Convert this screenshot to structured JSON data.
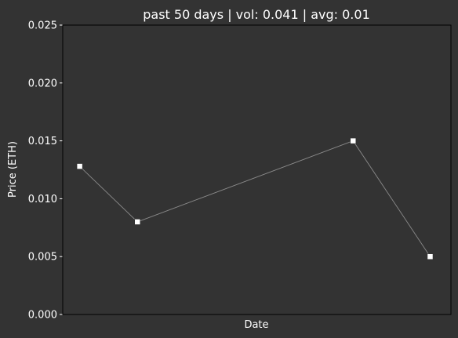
{
  "chart_data": {
    "type": "line",
    "title": "past 50 days | vol: 0.041 | avg: 0.01",
    "xlabel": "Date",
    "ylabel": "Price (ETH)",
    "ylim": [
      0,
      0.025
    ],
    "yticks": [
      "0.000",
      "0.005",
      "0.010",
      "0.015",
      "0.020",
      "0.025"
    ],
    "x": [
      1,
      8.5,
      36.5,
      46.5
    ],
    "xlim": [
      -1.2,
      49.2
    ],
    "series": [
      {
        "values": [
          0.0128,
          0.008,
          0.015,
          0.005
        ]
      }
    ],
    "grid": false,
    "colors": {
      "background": "#333333",
      "line": "#8a8a8a",
      "marker": "#ffffff",
      "text": "#ffffff"
    }
  }
}
